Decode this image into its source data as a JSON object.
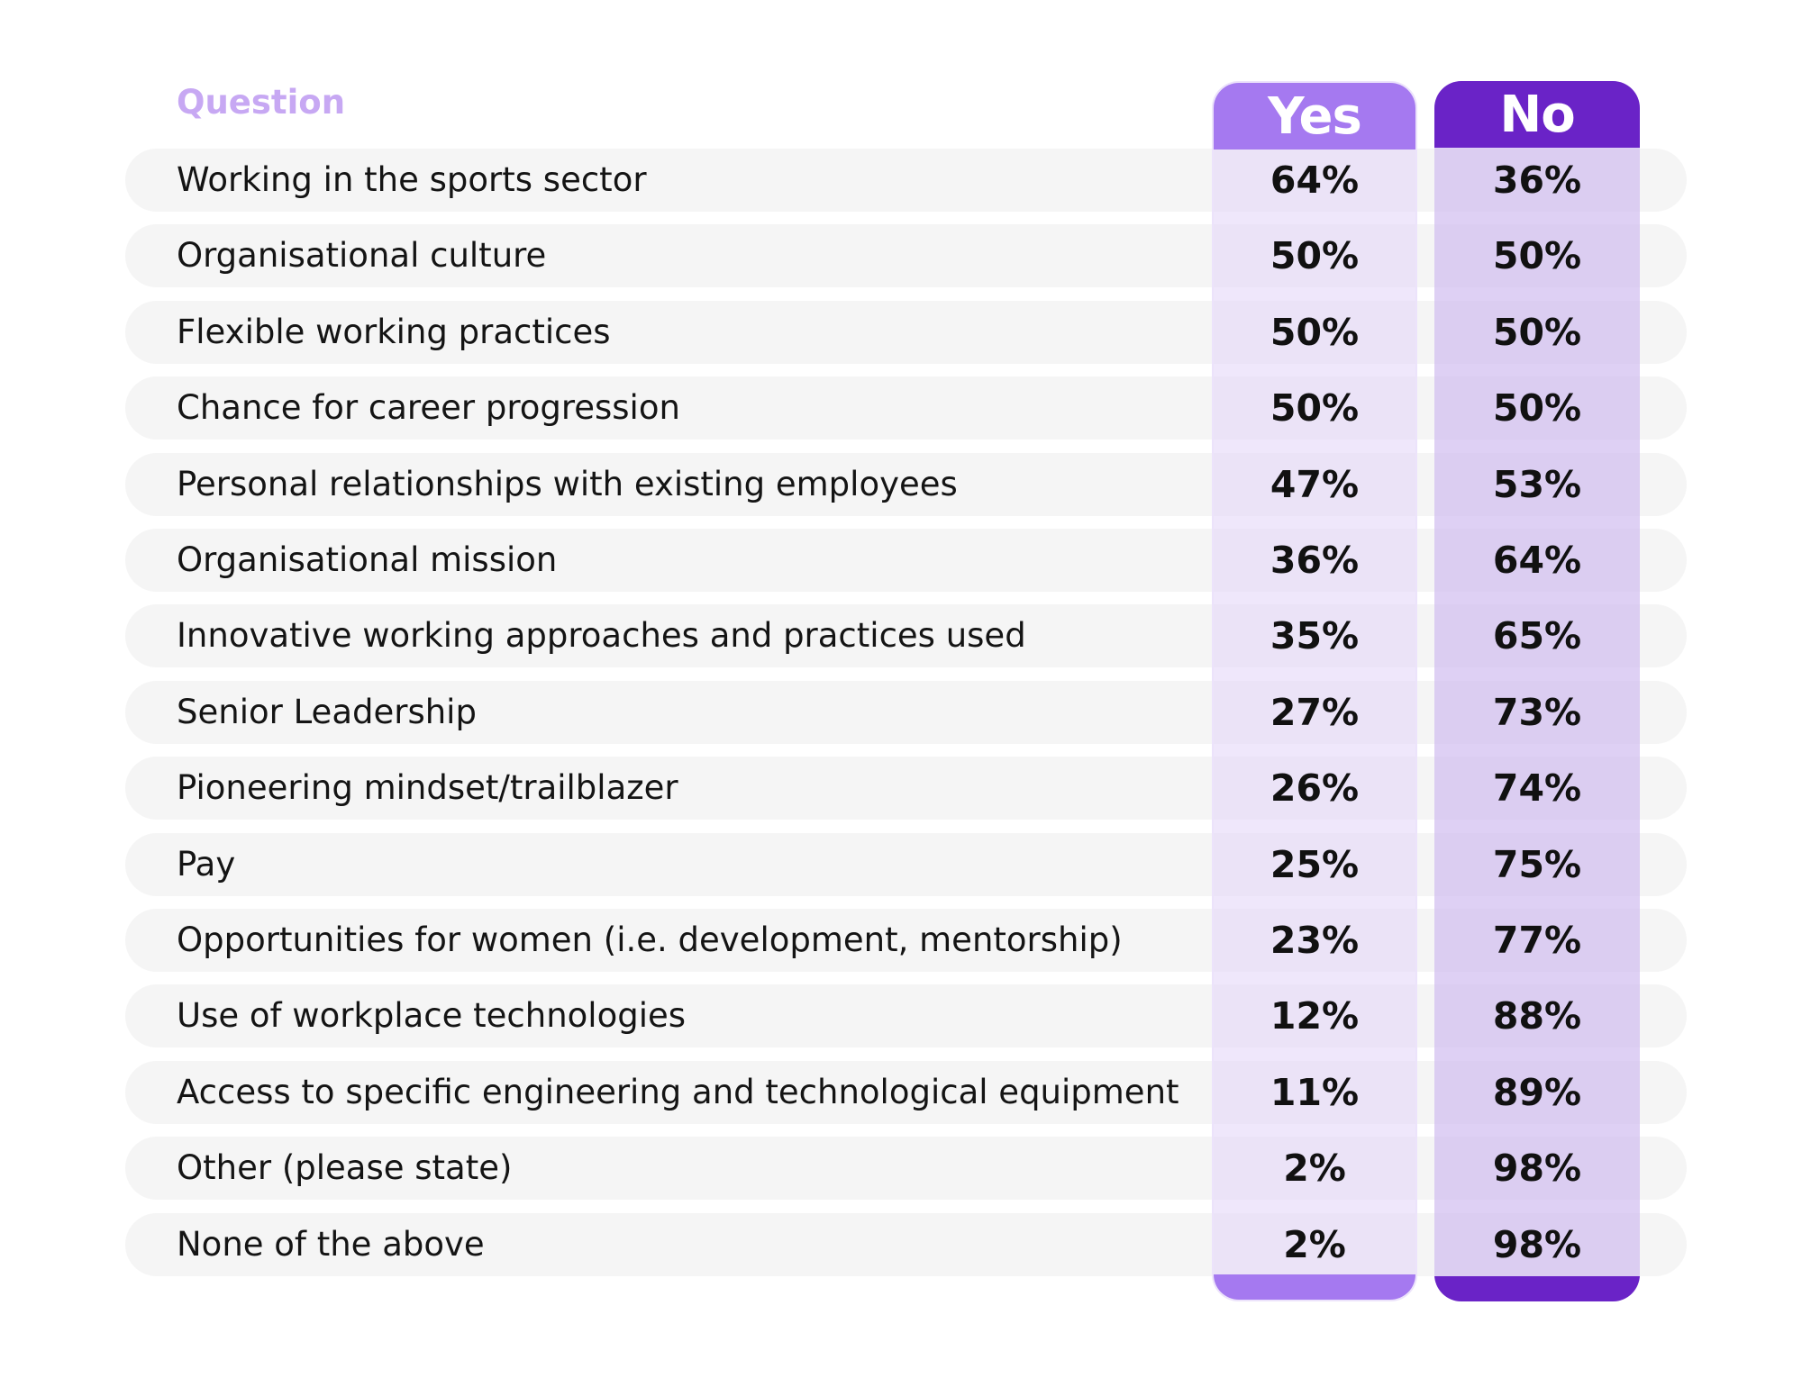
{
  "header": {
    "question_label": "Question",
    "yes_label": "Yes",
    "no_label": "No"
  },
  "colors": {
    "yes_accent": "#a579f0",
    "no_accent": "#6a23c7",
    "question_label": "#c7a8f3",
    "row_background": "#f5f5f5"
  },
  "chart_data": {
    "type": "table",
    "columns": [
      "Question",
      "Yes",
      "No"
    ],
    "rows": [
      {
        "question": "Working in the sports sector",
        "yes": "64%",
        "no": "36%"
      },
      {
        "question": "Organisational culture",
        "yes": "50%",
        "no": "50%"
      },
      {
        "question": "Flexible working practices",
        "yes": "50%",
        "no": "50%"
      },
      {
        "question": "Chance for career progression",
        "yes": "50%",
        "no": "50%"
      },
      {
        "question": "Personal relationships with existing employees",
        "yes": "47%",
        "no": "53%"
      },
      {
        "question": "Organisational mission",
        "yes": "36%",
        "no": "64%"
      },
      {
        "question": "Innovative working approaches and practices used",
        "yes": "35%",
        "no": "65%"
      },
      {
        "question": "Senior Leadership",
        "yes": "27%",
        "no": "73%"
      },
      {
        "question": "Pioneering mindset/trailblazer",
        "yes": "26%",
        "no": "74%"
      },
      {
        "question": "Pay",
        "yes": "25%",
        "no": "75%"
      },
      {
        "question": "Opportunities for women (i.e. development, mentorship)",
        "yes": "23%",
        "no": "77%"
      },
      {
        "question": "Use of workplace technologies",
        "yes": "12%",
        "no": "88%"
      },
      {
        "question": "Access to specific engineering and technological equipment",
        "yes": "11%",
        "no": "89%"
      },
      {
        "question": "Other (please state)",
        "yes": "2%",
        "no": "98%"
      },
      {
        "question": "None of the above",
        "yes": "2%",
        "no": "98%"
      }
    ]
  }
}
